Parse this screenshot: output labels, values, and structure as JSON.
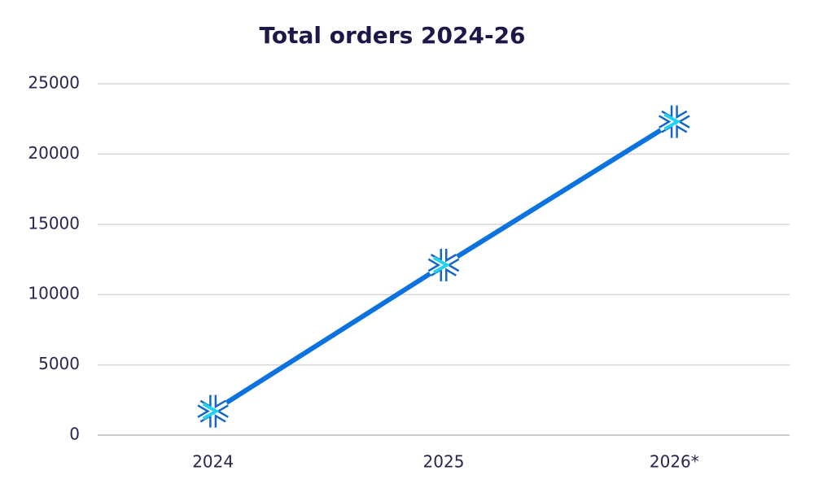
{
  "chart_data": {
    "type": "line",
    "title": "Total orders 2024-26",
    "categories": [
      "2024",
      "2025",
      "2026*"
    ],
    "values": [
      1700,
      12100,
      22300
    ],
    "color": "#0b72e0",
    "ylim": [
      0,
      25000
    ],
    "yticks": [
      0,
      5000,
      10000,
      15000,
      20000,
      25000
    ],
    "grid": true
  }
}
